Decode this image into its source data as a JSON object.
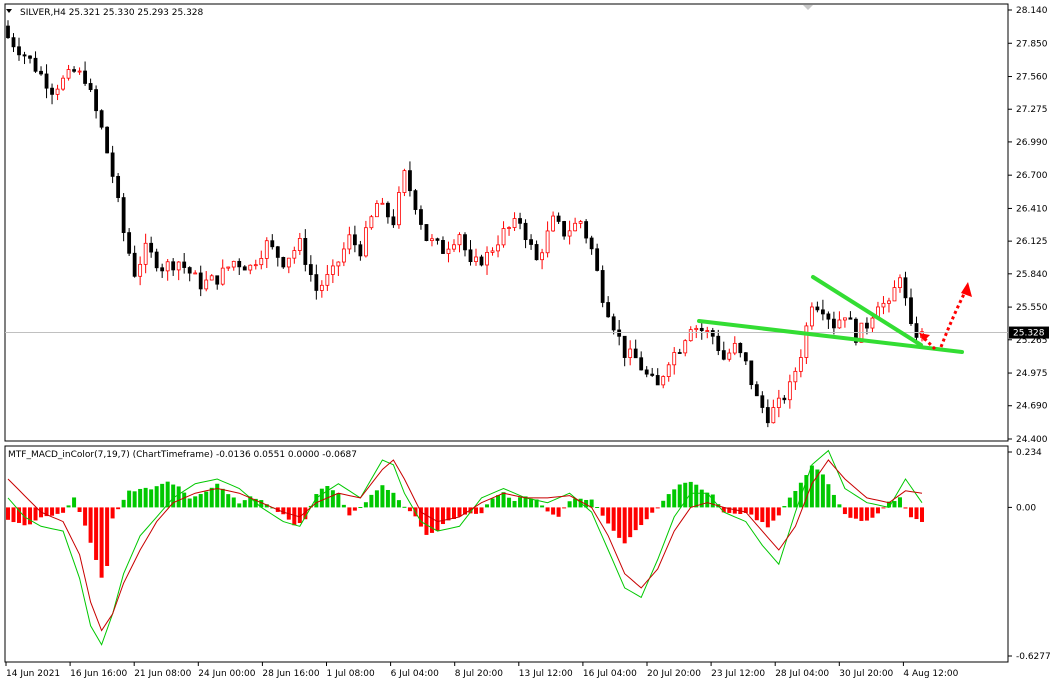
{
  "window": {
    "main_header": "SILVER,H4  25.321 25.330 25.293 25.328",
    "indicator_header": "MTF_MACD_inColor(7,19,7) (ChartTimeframe) -0.0136 0.0551 0.0000 -0.0687",
    "current_price_label": "25.328"
  },
  "colors": {
    "bull_candle": "#ff0000",
    "bear_candle": "#000000",
    "macd_positive": "#00c800",
    "macd_negative": "#ff0000",
    "signal_red": "#c80000",
    "signal_green": "#00c800",
    "trendline": "#33dd33",
    "arrow": "#ff0000",
    "price_line": "#c0c0c0"
  },
  "chart_data": [
    {
      "type": "candlestick",
      "symbol": "SILVER",
      "timeframe": "H4",
      "ylim": [
        24.4,
        28.14
      ],
      "y_ticks": [
        "28.140",
        "27.850",
        "27.560",
        "27.275",
        "26.990",
        "26.700",
        "26.410",
        "26.125",
        "25.840",
        "25.550",
        "25.265",
        "24.975",
        "24.690",
        "24.400"
      ],
      "x_tick_labels": [
        "14 Jun 2021",
        "16 Jun 16:00",
        "21 Jun 08:00",
        "24 Jun 00:00",
        "28 Jun 16:00",
        "1 Jul 08:00",
        "6 Jul 04:00",
        "8 Jul 20:00",
        "13 Jul 12:00",
        "16 Jul 04:00",
        "20 Jul 20:00",
        "23 Jul 12:00",
        "28 Jul 04:00",
        "30 Jul 20:00",
        "4 Aug 12:00"
      ],
      "current_price": 25.328,
      "close_path": [
        [
          0,
          27.9
        ],
        [
          4,
          27.7
        ],
        [
          8,
          27.45
        ],
        [
          12,
          27.6
        ],
        [
          14,
          27.55
        ],
        [
          17,
          27.1
        ],
        [
          19,
          26.7
        ],
        [
          21,
          26.2
        ],
        [
          23,
          25.85
        ],
        [
          25,
          26.05
        ],
        [
          28,
          25.9
        ],
        [
          31,
          25.95
        ],
        [
          35,
          25.75
        ],
        [
          38,
          25.8
        ],
        [
          41,
          25.95
        ],
        [
          44,
          25.9
        ],
        [
          47,
          26.1
        ],
        [
          50,
          25.95
        ],
        [
          53,
          26.1
        ],
        [
          56,
          25.7
        ],
        [
          59,
          25.85
        ],
        [
          62,
          26.15
        ],
        [
          64,
          26.05
        ],
        [
          67,
          26.45
        ],
        [
          70,
          26.3
        ],
        [
          72,
          26.7
        ],
        [
          74,
          26.45
        ],
        [
          76,
          26.15
        ],
        [
          79,
          26.05
        ],
        [
          82,
          26.2
        ],
        [
          84,
          25.9
        ],
        [
          87,
          26.0
        ],
        [
          90,
          26.2
        ],
        [
          93,
          26.3
        ],
        [
          96,
          25.95
        ],
        [
          99,
          26.3
        ],
        [
          101,
          26.2
        ],
        [
          104,
          26.3
        ],
        [
          106,
          26.05
        ],
        [
          108,
          25.65
        ],
        [
          110,
          25.4
        ],
        [
          112,
          25.15
        ],
        [
          114,
          25.1
        ],
        [
          116,
          24.95
        ],
        [
          118,
          24.85
        ],
        [
          120,
          25.1
        ],
        [
          122,
          25.2
        ],
        [
          124,
          25.4
        ],
        [
          126,
          25.35
        ],
        [
          128,
          25.3
        ],
        [
          130,
          25.1
        ],
        [
          132,
          25.2
        ],
        [
          134,
          25.05
        ],
        [
          136,
          24.75
        ],
        [
          138,
          24.6
        ],
        [
          140,
          24.7
        ],
        [
          142,
          24.85
        ],
        [
          144,
          25.15
        ],
        [
          146,
          25.6
        ],
        [
          148,
          25.55
        ],
        [
          150,
          25.4
        ],
        [
          152,
          25.5
        ],
        [
          154,
          25.3
        ],
        [
          156,
          25.4
        ],
        [
          158,
          25.6
        ],
        [
          160,
          25.55
        ],
        [
          162,
          25.85
        ],
        [
          164,
          25.35
        ],
        [
          166,
          25.3
        ]
      ],
      "candle_count": 167
    },
    {
      "type": "histogram",
      "name": "MTF_MACD_inColor(7,19,7)",
      "ylim": [
        -0.6277,
        0.234
      ],
      "y_ticks": [
        "0.234",
        "0.00",
        "-0.6277"
      ],
      "values_last": [
        -0.0136,
        0.0551,
        0.0,
        -0.0687
      ],
      "hist_path": [
        [
          0,
          -0.05
        ],
        [
          3,
          -0.08
        ],
        [
          6,
          -0.04
        ],
        [
          8,
          -0.04
        ],
        [
          10,
          -0.02
        ],
        [
          12,
          0.04
        ],
        [
          14,
          -0.08
        ],
        [
          16,
          -0.22
        ],
        [
          17,
          -0.3
        ],
        [
          18,
          -0.25
        ],
        [
          19,
          -0.05
        ],
        [
          22,
          0.07
        ],
        [
          26,
          0.08
        ],
        [
          29,
          0.11
        ],
        [
          31,
          0.09
        ],
        [
          33,
          0.04
        ],
        [
          36,
          0.07
        ],
        [
          38,
          0.1
        ],
        [
          40,
          0.06
        ],
        [
          42,
          0.02
        ],
        [
          44,
          0.05
        ],
        [
          46,
          0.03
        ],
        [
          48,
          0.0
        ],
        [
          50,
          -0.03
        ],
        [
          52,
          -0.08
        ],
        [
          54,
          -0.05
        ],
        [
          56,
          0.06
        ],
        [
          58,
          0.09
        ],
        [
          60,
          0.06
        ],
        [
          62,
          -0.03
        ],
        [
          64,
          0.0
        ],
        [
          66,
          0.05
        ],
        [
          68,
          0.09
        ],
        [
          70,
          0.06
        ],
        [
          72,
          0.0
        ],
        [
          74,
          -0.04
        ],
        [
          76,
          -0.12
        ],
        [
          78,
          -0.1
        ],
        [
          80,
          -0.05
        ],
        [
          82,
          -0.04
        ],
        [
          84,
          -0.03
        ],
        [
          86,
          -0.02
        ],
        [
          88,
          0.04
        ],
        [
          90,
          0.06
        ],
        [
          92,
          0.03
        ],
        [
          94,
          0.05
        ],
        [
          96,
          0.03
        ],
        [
          98,
          -0.02
        ],
        [
          100,
          -0.04
        ],
        [
          102,
          0.03
        ],
        [
          104,
          0.04
        ],
        [
          106,
          0.03
        ],
        [
          108,
          -0.03
        ],
        [
          110,
          -0.1
        ],
        [
          112,
          -0.15
        ],
        [
          114,
          -0.1
        ],
        [
          116,
          -0.05
        ],
        [
          118,
          0.0
        ],
        [
          120,
          0.06
        ],
        [
          122,
          0.1
        ],
        [
          124,
          0.11
        ],
        [
          126,
          0.08
        ],
        [
          128,
          0.05
        ],
        [
          130,
          -0.02
        ],
        [
          132,
          -0.03
        ],
        [
          134,
          -0.02
        ],
        [
          136,
          -0.05
        ],
        [
          138,
          -0.08
        ],
        [
          140,
          -0.03
        ],
        [
          142,
          0.04
        ],
        [
          144,
          0.1
        ],
        [
          146,
          0.18
        ],
        [
          148,
          0.14
        ],
        [
          150,
          0.05
        ],
        [
          152,
          -0.03
        ],
        [
          154,
          -0.05
        ],
        [
          156,
          -0.06
        ],
        [
          158,
          -0.03
        ],
        [
          160,
          0.02
        ],
        [
          162,
          0.04
        ],
        [
          164,
          -0.04
        ],
        [
          166,
          -0.06
        ]
      ],
      "signal_red_path": [
        [
          0,
          0.12
        ],
        [
          3,
          0.05
        ],
        [
          6,
          -0.02
        ],
        [
          10,
          -0.06
        ],
        [
          13,
          -0.2
        ],
        [
          15,
          -0.4
        ],
        [
          17,
          -0.52
        ],
        [
          19,
          -0.45
        ],
        [
          21,
          -0.32
        ],
        [
          24,
          -0.18
        ],
        [
          27,
          -0.06
        ],
        [
          30,
          0.02
        ],
        [
          34,
          0.06
        ],
        [
          38,
          0.08
        ],
        [
          42,
          0.06
        ],
        [
          46,
          0.02
        ],
        [
          50,
          -0.02
        ],
        [
          53,
          -0.04
        ],
        [
          56,
          0.02
        ],
        [
          60,
          0.06
        ],
        [
          64,
          0.04
        ],
        [
          68,
          0.16
        ],
        [
          70,
          0.2
        ],
        [
          72,
          0.12
        ],
        [
          75,
          -0.02
        ],
        [
          78,
          -0.06
        ],
        [
          82,
          -0.04
        ],
        [
          86,
          0.02
        ],
        [
          90,
          0.06
        ],
        [
          94,
          0.04
        ],
        [
          98,
          0.04
        ],
        [
          102,
          0.05
        ],
        [
          106,
          0.0
        ],
        [
          109,
          -0.12
        ],
        [
          112,
          -0.28
        ],
        [
          115,
          -0.34
        ],
        [
          118,
          -0.26
        ],
        [
          121,
          -0.1
        ],
        [
          124,
          0.0
        ],
        [
          127,
          0.02
        ],
        [
          130,
          0.0
        ],
        [
          134,
          -0.02
        ],
        [
          137,
          -0.1
        ],
        [
          140,
          -0.18
        ],
        [
          143,
          -0.08
        ],
        [
          146,
          0.1
        ],
        [
          149,
          0.2
        ],
        [
          152,
          0.12
        ],
        [
          156,
          0.04
        ],
        [
          160,
          0.02
        ],
        [
          163,
          0.07
        ],
        [
          166,
          0.06
        ]
      ],
      "signal_green_path": [
        [
          0,
          0.04
        ],
        [
          3,
          -0.04
        ],
        [
          6,
          -0.08
        ],
        [
          10,
          -0.1
        ],
        [
          13,
          -0.3
        ],
        [
          15,
          -0.5
        ],
        [
          17,
          -0.58
        ],
        [
          19,
          -0.45
        ],
        [
          21,
          -0.28
        ],
        [
          24,
          -0.12
        ],
        [
          27,
          -0.04
        ],
        [
          30,
          0.04
        ],
        [
          34,
          0.1
        ],
        [
          38,
          0.12
        ],
        [
          42,
          0.08
        ],
        [
          46,
          0.0
        ],
        [
          50,
          -0.06
        ],
        [
          53,
          -0.08
        ],
        [
          56,
          0.04
        ],
        [
          60,
          0.1
        ],
        [
          64,
          0.04
        ],
        [
          68,
          0.2
        ],
        [
          70,
          0.18
        ],
        [
          72,
          0.06
        ],
        [
          75,
          -0.06
        ],
        [
          78,
          -0.1
        ],
        [
          82,
          -0.08
        ],
        [
          86,
          0.04
        ],
        [
          90,
          0.08
        ],
        [
          94,
          0.04
        ],
        [
          98,
          0.02
        ],
        [
          102,
          0.06
        ],
        [
          106,
          -0.02
        ],
        [
          109,
          -0.18
        ],
        [
          112,
          -0.34
        ],
        [
          115,
          -0.38
        ],
        [
          118,
          -0.22
        ],
        [
          121,
          -0.04
        ],
        [
          124,
          0.06
        ],
        [
          127,
          0.06
        ],
        [
          130,
          -0.02
        ],
        [
          134,
          -0.06
        ],
        [
          137,
          -0.16
        ],
        [
          140,
          -0.24
        ],
        [
          143,
          -0.02
        ],
        [
          146,
          0.18
        ],
        [
          149,
          0.24
        ],
        [
          152,
          0.08
        ],
        [
          156,
          0.02
        ],
        [
          160,
          0.0
        ],
        [
          163,
          0.12
        ],
        [
          166,
          0.02
        ]
      ]
    }
  ]
}
